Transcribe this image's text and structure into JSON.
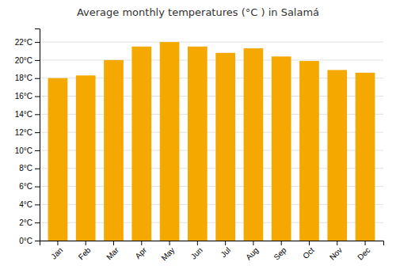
{
  "chart_data": {
    "type": "bar",
    "title": "Average monthly temperatures (°C ) in Salamá",
    "categories": [
      "Jan",
      "Feb",
      "Mar",
      "Apr",
      "May",
      "Jun",
      "Jul",
      "Aug",
      "Sep",
      "Oct",
      "Nov",
      "Dec"
    ],
    "values": [
      18.0,
      18.3,
      20.0,
      21.5,
      22.0,
      21.5,
      20.8,
      21.3,
      20.4,
      19.9,
      18.9,
      18.6
    ],
    "color": "#F5A800",
    "ylim": [
      0,
      23.5
    ],
    "yticks": [
      {
        "value": 0,
        "label": "0°C"
      },
      {
        "value": 2,
        "label": "2°C"
      },
      {
        "value": 4,
        "label": "4°C"
      },
      {
        "value": 6,
        "label": "6°C"
      },
      {
        "value": 8,
        "label": "8°C"
      },
      {
        "value": 10,
        "label": "10°C"
      },
      {
        "value": 12,
        "label": "12°C"
      },
      {
        "value": 14,
        "label": "14°C"
      },
      {
        "value": 16,
        "label": "16°C"
      },
      {
        "value": 18,
        "label": "18°C"
      },
      {
        "value": 20,
        "label": "20°C"
      },
      {
        "value": 22,
        "label": "22°C"
      }
    ],
    "grid": true
  }
}
